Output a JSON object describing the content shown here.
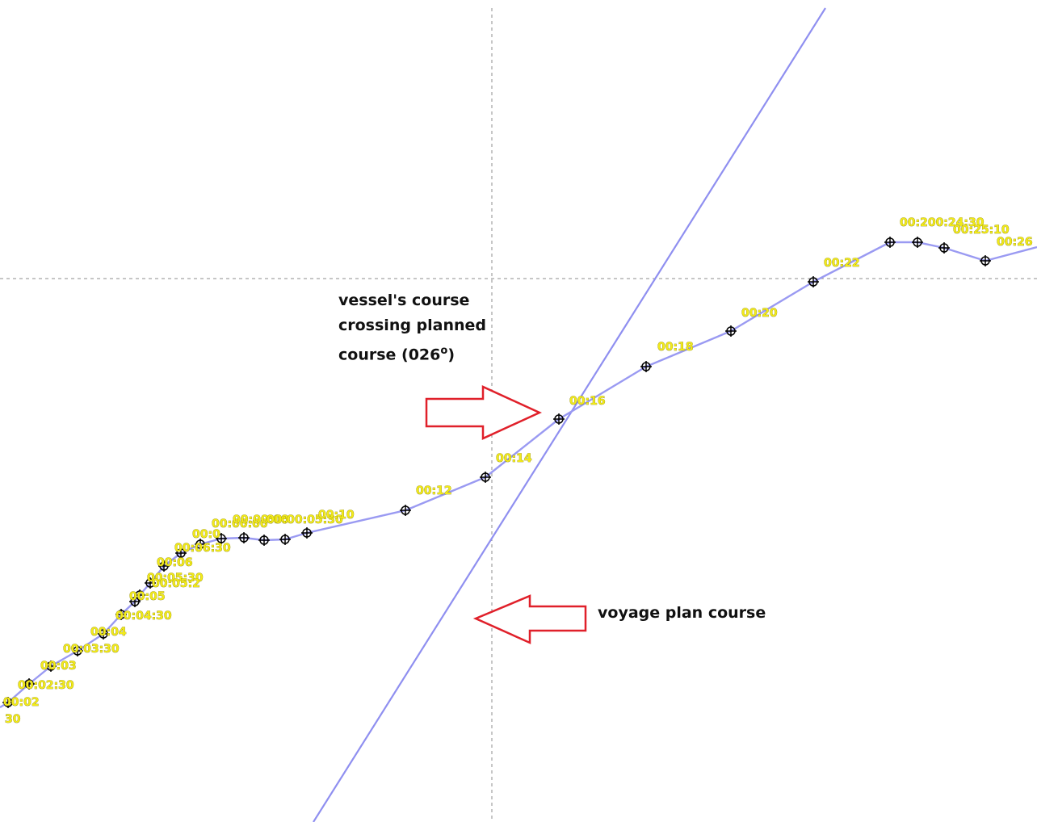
{
  "annotations": {
    "crossing_line1": "vessel's course",
    "crossing_line2": "crossing planned",
    "crossing_line3": "course (026",
    "crossing_degree": "o",
    "crossing_close": ")",
    "voyage_plan": "voyage plan course"
  },
  "colors": {
    "track": "#9a9af2",
    "plan_course": "#8f8ff0",
    "arrow_outline": "#e0202a",
    "label": "#f2ea1a",
    "crosshair": "#8c8c8c"
  },
  "time_labels": [
    "30",
    "00:02",
    "00:02:30",
    "00:03",
    "00:03:30",
    "00:04",
    "00:04:30",
    "00:05",
    "00:05:30",
    "00:05:2",
    "00:06",
    "00:06:30",
    "00:0",
    "00:00:00",
    "00:00:00",
    "00:00:05:30",
    "00:10",
    "00:12",
    "00:14",
    "00:16",
    "00:18",
    "00:20",
    "00:22",
    "00:200:24:30",
    "00:25:10",
    "00:26"
  ]
}
